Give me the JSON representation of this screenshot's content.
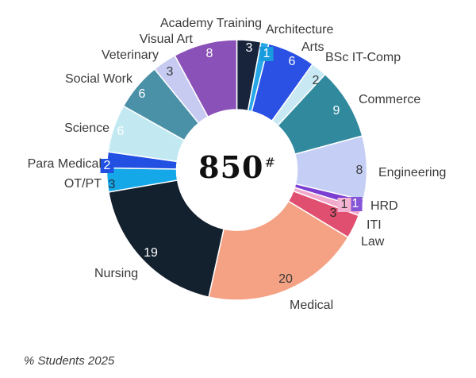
{
  "center": {
    "total": "850",
    "superscript": "#"
  },
  "footnote": "% Students 2025",
  "chart_data": {
    "type": "pie",
    "subtype": "donut",
    "title": "",
    "ylabel": "",
    "xlabel": "",
    "legend_position": "none",
    "value_unit": "% of students",
    "center_label": "850#",
    "footnote": "% Students 2025",
    "start_angle_deg": 0,
    "direction": "clockwise",
    "categories": [
      "Academy Training",
      "Architecture",
      "Arts",
      "BSc IT-Comp",
      "Commerce",
      "Engineering",
      "HRD",
      "ITI",
      "Law",
      "Medical",
      "Nursing",
      "OT/PT",
      "Para Medical",
      "Science",
      "Social Work",
      "Veterinary",
      "Visual Art"
    ],
    "values": [
      3,
      1,
      6,
      2,
      9,
      8,
      1,
      1,
      3,
      20,
      19,
      3,
      2,
      6,
      6,
      3,
      8
    ],
    "slices": [
      {
        "name": "Academy Training",
        "value": 3,
        "color": "#17243c",
        "value_color": "#ffffff"
      },
      {
        "name": "Architecture",
        "value": 1,
        "color": "#28a8e8",
        "value_color": "#ffffff",
        "box_color": "#189bdd"
      },
      {
        "name": "Arts",
        "value": 6,
        "color": "#2b50e4",
        "value_color": "#ffffff"
      },
      {
        "name": "BSc IT-Comp",
        "value": 2,
        "color": "#c8e9f4",
        "value_color": "#3a3a3a"
      },
      {
        "name": "Commerce",
        "value": 9,
        "color": "#31899e",
        "value_color": "#ffffff"
      },
      {
        "name": "Engineering",
        "value": 8,
        "color": "#c5cff5",
        "value_color": "#3a3a3a"
      },
      {
        "name": "HRD",
        "value": 1,
        "color": "#7b3ed2",
        "value_color": "#ffffff",
        "box_color": "#8455d6"
      },
      {
        "name": "ITI",
        "value": 1,
        "color": "#f2a9cb",
        "value_color": "#3a3a3a",
        "box_color": "#f3b3d2"
      },
      {
        "name": "Law",
        "value": 3,
        "color": "#e14f70",
        "value_color": "#2a2a2a"
      },
      {
        "name": "Medical",
        "value": 20,
        "color": "#f5a183",
        "value_color": "#3a3a3a"
      },
      {
        "name": "Nursing",
        "value": 19,
        "color": "#13202e",
        "value_color": "#ffffff"
      },
      {
        "name": "OT/PT",
        "value": 3,
        "color": "#14a8e8",
        "value_color": "#1f3040"
      },
      {
        "name": "Para Medical",
        "value": 2,
        "color": "#2150e2",
        "value_color": "#ffffff",
        "box_color": "#2150e2"
      },
      {
        "name": "Science",
        "value": 6,
        "color": "#c2e9f2",
        "value_color": "#ffffff"
      },
      {
        "name": "Social Work",
        "value": 6,
        "color": "#4a91a8",
        "value_color": "#ffffff"
      },
      {
        "name": "Veterinary",
        "value": 3,
        "color": "#c7cbf2",
        "value_color": "#3a3a3a"
      },
      {
        "name": "Visual Art",
        "value": 8,
        "color": "#8a51b8",
        "value_color": "#ffffff"
      }
    ]
  }
}
